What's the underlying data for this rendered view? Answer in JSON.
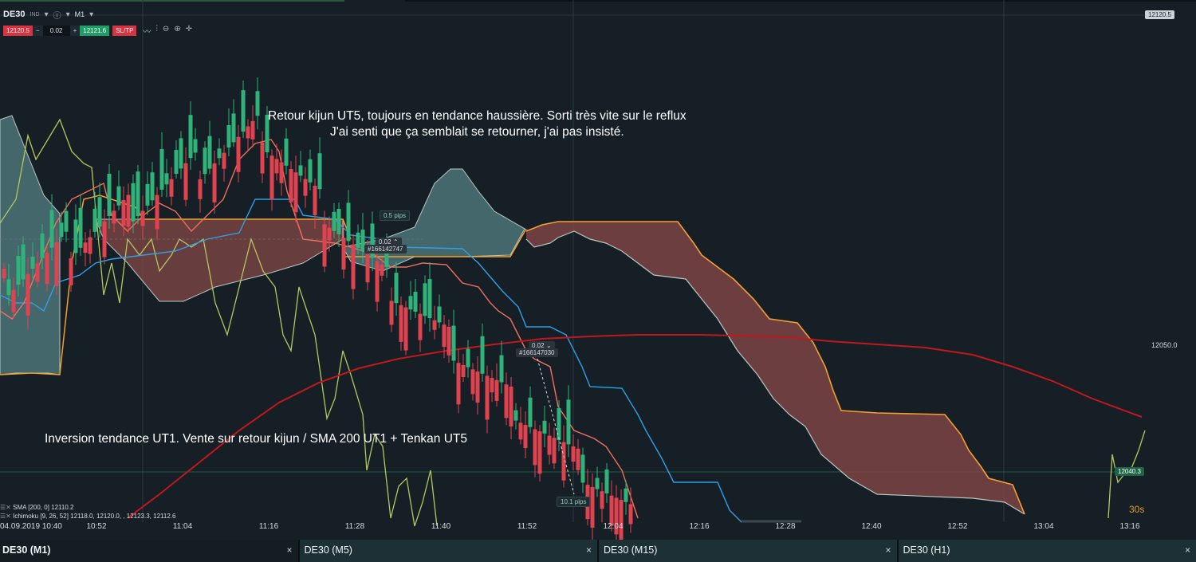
{
  "header": {
    "symbol": "DE30",
    "type_badge": "IND",
    "timeframe": "M1"
  },
  "trade_bar": {
    "sell_price": "12120.5",
    "minus": "−",
    "quantity": "0.02",
    "plus": "+",
    "buy_price": "12121.6",
    "sltp_label": "SL/TP"
  },
  "toolbar_icons": [
    "line-chart-icon",
    "indicators-icon",
    "zoom-out-icon",
    "zoom-in-icon",
    "crosshair-icon"
  ],
  "price_axis": {
    "top_tag": "12120.5",
    "label_mid": "12050.0",
    "current_tag": "12040.3"
  },
  "trade_tags": {
    "order1_qty": "0.02",
    "order1_id": "#166142747",
    "order1_pips": "0.5 pips",
    "order2_qty": "0.02",
    "order2_id": "#166147030",
    "order2_pips": "10.1 pips"
  },
  "annotations": {
    "top_line1": "Retour kijun UT5, toujours en tendance haussière. Sorti très vite sur le reflux",
    "top_line2": "J'ai senti que ça semblait se retourner, j'ai pas insisté.",
    "bottom": "Inversion tendance UT1. Vente sur retour kijun / SMA 200 UT1 + Tenkan UT5"
  },
  "indicators": [
    {
      "name": "SMA [200, 0]",
      "value": "12110.2"
    },
    {
      "name": "Ichimoku [9, 26, 52]",
      "value": "12118.0, 12120.0, , 12123.3, 12112.6"
    }
  ],
  "x_axis_labels": [
    "04.09.2019 10:40",
    "10:52",
    "11:04",
    "11:16",
    "11:28",
    "11:40",
    "11:52",
    "12:04",
    "12:16",
    "12:28",
    "12:40",
    "12:52",
    "13:04",
    "13:16"
  ],
  "candle_timer": "30s",
  "tabs": [
    {
      "label": "DE30 (M1)",
      "close": "×"
    },
    {
      "label": "DE30 (M5)",
      "close": "×"
    },
    {
      "label": "DE30 (M15)",
      "close": "×"
    },
    {
      "label": "DE30 (H1)",
      "close": "×"
    }
  ],
  "colors": {
    "background": "#161f25",
    "candle_up": "#2fb37a",
    "candle_down": "#e0434f",
    "sma200": "#c0181e",
    "tenkan": "#f36f5b",
    "kijun": "#2fa0e8",
    "chikou": "#b3c85e",
    "cloud_bull": "#6aa2a6",
    "cloud_bear": "#8a4a48",
    "senkou_a": "#f5a030",
    "senkou_b": "#b8c7c4"
  },
  "chart_data": {
    "type": "candlestick",
    "symbol": "DE30",
    "timeframe": "M1",
    "price_labels": [
      12050.0,
      12040.3,
      12120.5
    ],
    "x_labels": [
      "10:40",
      "10:52",
      "11:04",
      "11:16",
      "11:28",
      "11:40",
      "11:52",
      "12:04",
      "12:16",
      "12:28",
      "12:40",
      "12:52",
      "13:04",
      "13:16"
    ],
    "sma200_last": 12110.2,
    "ichimoku_last": [
      12118.0,
      12120.0,
      12123.3,
      12112.6
    ]
  }
}
